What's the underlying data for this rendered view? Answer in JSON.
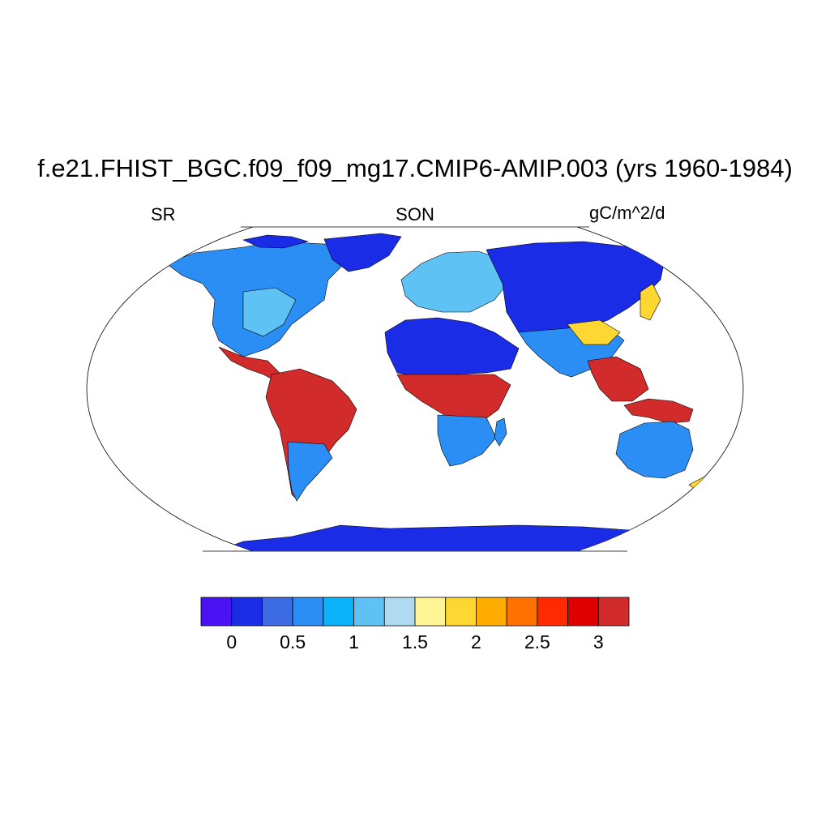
{
  "title": "f.e21.FHIST_BGC.f09_f09_mg17.CMIP6-AMIP.003 (yrs 1960-1984)",
  "left_label": "SR",
  "center_label": "SON",
  "right_label": "gC/m^2/d",
  "colorbar": {
    "colors": [
      "#4a12f2",
      "#1a2ce6",
      "#3c6be3",
      "#2b8ef5",
      "#0cb2fa",
      "#5ec2f5",
      "#b0daf2",
      "#fff594",
      "#ffd732",
      "#ffac00",
      "#ff7200",
      "#ff2a00",
      "#e00000",
      "#d12b2b"
    ],
    "tick_labels": [
      "0",
      "0.5",
      "1",
      "1.5",
      "2",
      "2.5",
      "3"
    ]
  },
  "palette": {
    "ocean": "#ffffff",
    "land_desert": "#1a2ce6",
    "land_low": "#2b8ef5",
    "land_mid": "#5ec2f5",
    "land_high": "#d12b2b",
    "land_warm": "#ffd732",
    "coast": "#000000"
  }
}
